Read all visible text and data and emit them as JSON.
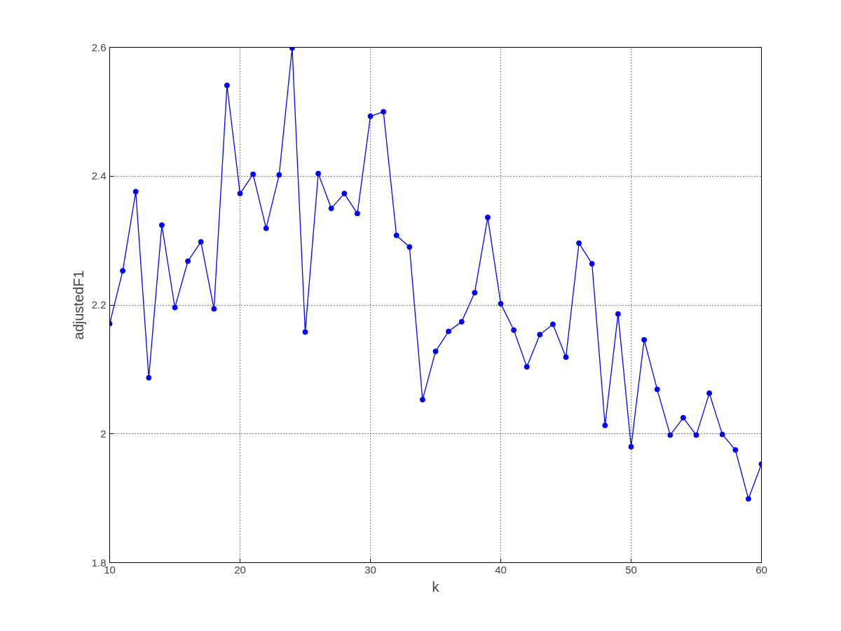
{
  "chart_data": {
    "type": "line",
    "xlabel": "k",
    "ylabel": "adjustedF1",
    "x": [
      10,
      11,
      12,
      13,
      14,
      15,
      16,
      17,
      18,
      19,
      20,
      21,
      22,
      23,
      24,
      25,
      26,
      27,
      28,
      29,
      30,
      31,
      32,
      33,
      34,
      35,
      36,
      37,
      38,
      39,
      40,
      41,
      42,
      43,
      44,
      45,
      46,
      47,
      48,
      49,
      50,
      51,
      52,
      53,
      54,
      55,
      56,
      57,
      58,
      59,
      60
    ],
    "series": [
      {
        "color": "#0000ff",
        "values": [
          2.171,
          2.253,
          2.376,
          2.087,
          2.324,
          2.196,
          2.268,
          2.298,
          2.194,
          2.541,
          2.373,
          2.403,
          2.319,
          2.402,
          2.599,
          2.158,
          2.404,
          2.35,
          2.373,
          2.342,
          2.493,
          2.5,
          2.308,
          2.29,
          2.053,
          2.128,
          2.159,
          2.174,
          2.219,
          2.336,
          2.202,
          2.161,
          2.104,
          2.154,
          2.17,
          2.119,
          2.296,
          2.264,
          2.013,
          2.186,
          1.98,
          2.146,
          2.069,
          1.998,
          2.025,
          1.998,
          2.063,
          1.999,
          1.975,
          1.899,
          1.953
        ]
      }
    ],
    "xlim": [
      10,
      60
    ],
    "xticks": [
      10,
      20,
      30,
      40,
      50,
      60
    ],
    "ylim": [
      1.8,
      2.6
    ],
    "yticks": [
      {
        "value": 1.8,
        "label": "1.8"
      },
      {
        "value": 2.0,
        "label": "2"
      },
      {
        "value": 2.2,
        "label": "2.2"
      },
      {
        "value": 2.4,
        "label": "2.4"
      },
      {
        "value": 2.6,
        "label": "2.6"
      }
    ],
    "grid": true,
    "marker": "circle",
    "line_style": "solid"
  }
}
